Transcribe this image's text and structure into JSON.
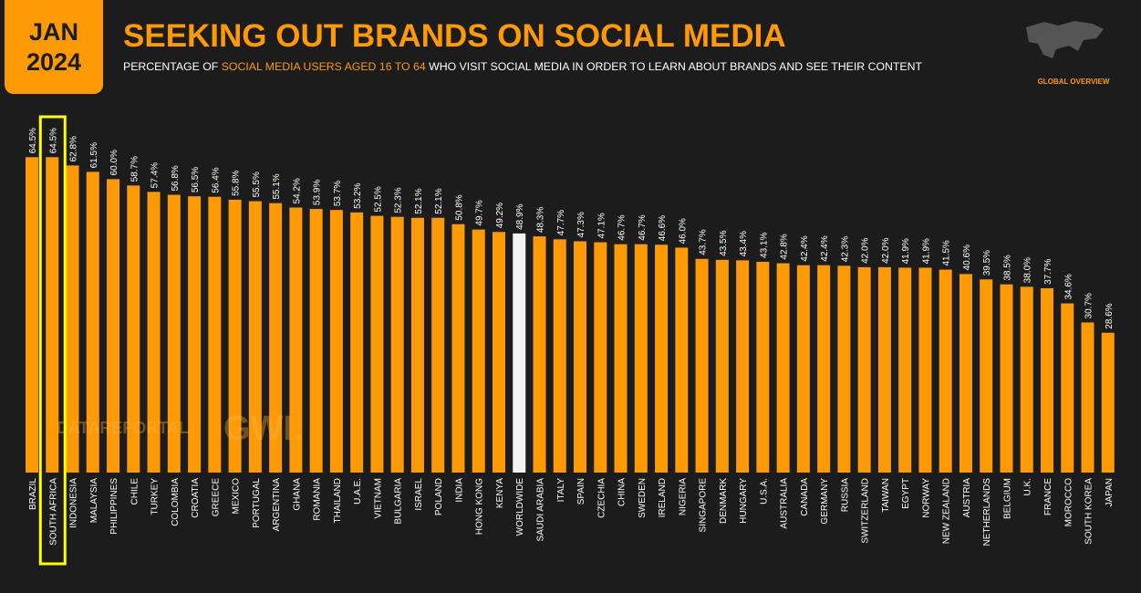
{
  "chart_data": {
    "type": "bar",
    "badge": {
      "month": "JAN",
      "year": "2024"
    },
    "title": "SEEKING OUT BRANDS ON SOCIAL MEDIA",
    "subtitle": {
      "parts": [
        "PERCENTAGE OF ",
        "SOCIAL MEDIA USERS AGED 16 TO 64",
        " WHO VISIT SOCIAL MEDIA IN ORDER TO LEARN ABOUT BRANDS AND SEE THEIR CONTENT"
      ]
    },
    "section": "GLOBAL OVERVIEW",
    "watermark": [
      "DATAREPORTAL",
      "GWI."
    ],
    "color": "#fd9a05",
    "reference": "WORLDWIDE",
    "reference_color": "#f2f2f2",
    "highlight": "SOUTH AFRICA",
    "highlight_color": "#ffff00",
    "categories": [
      "BRAZIL",
      "SOUTH AFRICA",
      "INDONESIA",
      "MALAYSIA",
      "PHILIPPINES",
      "CHILE",
      "TURKEY",
      "COLOMBIA",
      "CROATIA",
      "GREECE",
      "MEXICO",
      "PORTUGAL",
      "ARGENTINA",
      "GHANA",
      "ROMANIA",
      "THAILAND",
      "U.A.E.",
      "VIETNAM",
      "BULGARIA",
      "ISRAEL",
      "POLAND",
      "INDIA",
      "HONG KONG",
      "KENYA",
      "WORLDWIDE",
      "SAUDI ARABIA",
      "ITALY",
      "SPAIN",
      "CZECHIA",
      "CHINA",
      "SWEDEN",
      "IRELAND",
      "NIGERIA",
      "SINGAPORE",
      "DENMARK",
      "HUNGARY",
      "U.S.A.",
      "AUSTRALIA",
      "CANADA",
      "GERMANY",
      "RUSSIA",
      "SWITZERLAND",
      "TAIWAN",
      "EGYPT",
      "NORWAY",
      "NEW ZEALAND",
      "AUSTRIA",
      "NETHERLANDS",
      "BELGIUM",
      "U.K.",
      "FRANCE",
      "MOROCCO",
      "SOUTH KOREA",
      "JAPAN"
    ],
    "values": [
      64.5,
      64.5,
      62.8,
      61.5,
      60.0,
      58.7,
      57.4,
      56.8,
      56.5,
      56.4,
      55.8,
      55.5,
      55.1,
      54.2,
      53.9,
      53.7,
      53.2,
      52.5,
      52.3,
      52.1,
      52.1,
      50.8,
      49.7,
      49.2,
      48.9,
      48.3,
      47.7,
      47.3,
      47.1,
      46.7,
      46.7,
      46.6,
      46.0,
      43.7,
      43.5,
      43.4,
      43.1,
      42.8,
      42.4,
      42.4,
      42.3,
      42.0,
      42.0,
      41.9,
      41.9,
      41.5,
      40.6,
      39.5,
      38.5,
      38.0,
      37.7,
      34.6,
      30.7,
      28.6
    ],
    "value_labels": [
      "64.5%",
      "64.5%",
      "62.8%",
      "61.5%",
      "60.0%",
      "58.7%",
      "57.4%",
      "56.8%",
      "56.5%",
      "56.4%",
      "55.8%",
      "55.5%",
      "55.1%",
      "54.2%",
      "53.9%",
      "53.7%",
      "53.2%",
      "52.5%",
      "52.3%",
      "52.1%",
      "52.1%",
      "50.8%",
      "49.7%",
      "49.2%",
      "48.9%",
      "48.3%",
      "47.7%",
      "47.3%",
      "47.1%",
      "46.7%",
      "46.7%",
      "46.6%",
      "46.0%",
      "43.7%",
      "43.5%",
      "43.4%",
      "43.1%",
      "42.8%",
      "42.4%",
      "42.4%",
      "42.3%",
      "42.0%",
      "42.0%",
      "41.9%",
      "41.9%",
      "41.5%",
      "40.6%",
      "39.5%",
      "38.5%",
      "38.0%",
      "37.7%",
      "34.6%",
      "30.7%",
      "28.6%"
    ]
  }
}
